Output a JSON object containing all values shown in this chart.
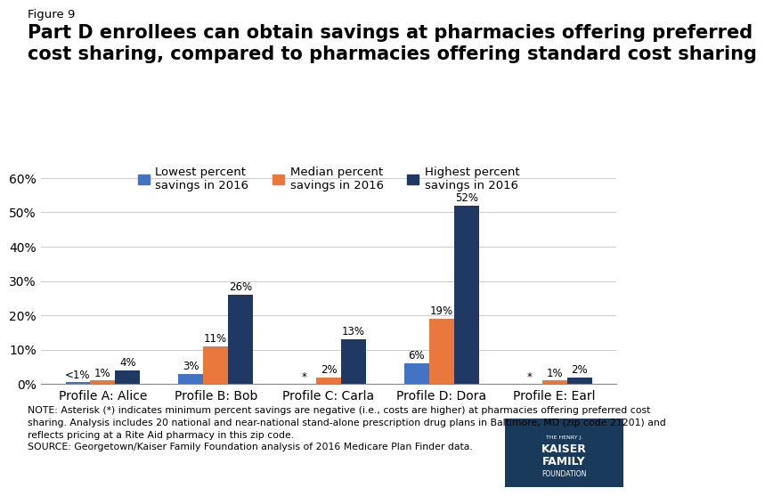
{
  "figure_label": "Figure 9",
  "title": "Part D enrollees can obtain savings at pharmacies offering preferred\ncost sharing, compared to pharmacies offering standard cost sharing",
  "categories": [
    "Profile A: Alice",
    "Profile B: Bob",
    "Profile C: Carla",
    "Profile D: Dora",
    "Profile E: Earl"
  ],
  "series": {
    "lowest": [
      0.5,
      3,
      -1,
      6,
      -1
    ],
    "median": [
      1,
      11,
      2,
      19,
      1
    ],
    "highest": [
      4,
      26,
      13,
      52,
      2
    ]
  },
  "bar_labels": {
    "lowest": [
      "<1%",
      "3%",
      "*",
      "6%",
      "*"
    ],
    "median": [
      "1%",
      "11%",
      "2%",
      "19%",
      "1%"
    ],
    "highest": [
      "4%",
      "26%",
      "13%",
      "52%",
      "2%"
    ]
  },
  "colors": {
    "lowest": "#4472C4",
    "median": "#E8783C",
    "highest": "#1F3864"
  },
  "legend_labels": [
    "Lowest percent\nsavings in 2016",
    "Median percent\nsavings in 2016",
    "Highest percent\nsavings in 2016"
  ],
  "ylim": [
    0,
    60
  ],
  "yticks": [
    0,
    10,
    20,
    30,
    40,
    50,
    60
  ],
  "ytick_labels": [
    "0%",
    "10%",
    "20%",
    "30%",
    "40%",
    "50%",
    "60%"
  ],
  "note_text": "NOTE: Asterisk (*) indicates minimum percent savings are negative (i.e., costs are higher) at pharmacies offering preferred cost\nsharing. Analysis includes 20 national and near-national stand-alone prescription drug plans in Baltimore, MD (zip code 21201) and\nreflects pricing at a Rite Aid pharmacy in this zip code.\nSOURCE: Georgetown/Kaiser Family Foundation analysis of 2016 Medicare Plan Finder data.",
  "background_color": "#FFFFFF",
  "bar_width": 0.22,
  "label_fontsize": 8.5,
  "tick_fontsize": 10,
  "note_fontsize": 7.8,
  "figure_label_fontsize": 9.5,
  "title_fontsize": 15
}
